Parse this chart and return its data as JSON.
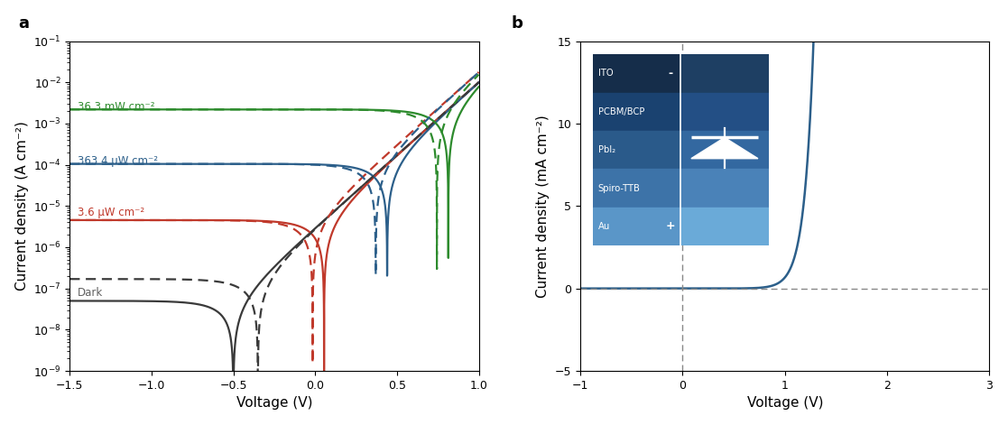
{
  "panel_a": {
    "xlabel": "Voltage (V)",
    "ylabel": "Current density (A cm⁻²)",
    "xlim": [
      -1.5,
      1.0
    ],
    "colors": {
      "dark": "#3a3a3a",
      "red": "#c0392b",
      "blue": "#2c5f8a",
      "green": "#2d8b2d"
    },
    "label_colors": {
      "dark": "#606060",
      "red": "#c0392b",
      "blue": "#2c5f8a",
      "green": "#2d8b2d"
    },
    "labels": {
      "dark": "Dark",
      "red": "3.6 μW cm⁻²",
      "blue": "363.4 μW cm⁻²",
      "green": "36.3 mW cm⁻²"
    },
    "Jsc_dark": 0,
    "Jsc_red": 4.5e-06,
    "Jsc_blue": 0.000105,
    "Jsc_green": 0.0022,
    "J0": 3e-09,
    "n": 0.042,
    "dark_reverse": 5e-08
  },
  "panel_b": {
    "xlabel": "Voltage (V)",
    "ylabel": "Current density (mA cm⁻²)",
    "xlim": [
      -1.0,
      3.0
    ],
    "ylim": [
      -5,
      15
    ],
    "yticks": [
      -5,
      0,
      5,
      10,
      15
    ],
    "xticks": [
      -1,
      0,
      1,
      2,
      3
    ],
    "line_color": "#2c5f8a",
    "J0_diode": 1e-08,
    "Vt": 0.09,
    "inset_layers": [
      {
        "label": "ITO",
        "color_left": "#152d4a",
        "color_right": "#1e3f63",
        "sign": "-"
      },
      {
        "label": "PCBM/BCP",
        "color_left": "#1a4270",
        "color_right": "#234f85",
        "sign": ""
      },
      {
        "label": "PbI₂",
        "color_left": "#2a5a8a",
        "color_right": "#3368a0",
        "sign": ""
      },
      {
        "label": "Spiro-TTB",
        "color_left": "#3d73a8",
        "color_right": "#4a82b8",
        "sign": ""
      },
      {
        "label": "Au",
        "color_left": "#5a96c8",
        "color_right": "#6aaad8",
        "sign": "+"
      }
    ]
  },
  "background_color": "#ffffff",
  "tick_labelsize": 9,
  "axis_labelsize": 11,
  "panel_label_size": 13
}
